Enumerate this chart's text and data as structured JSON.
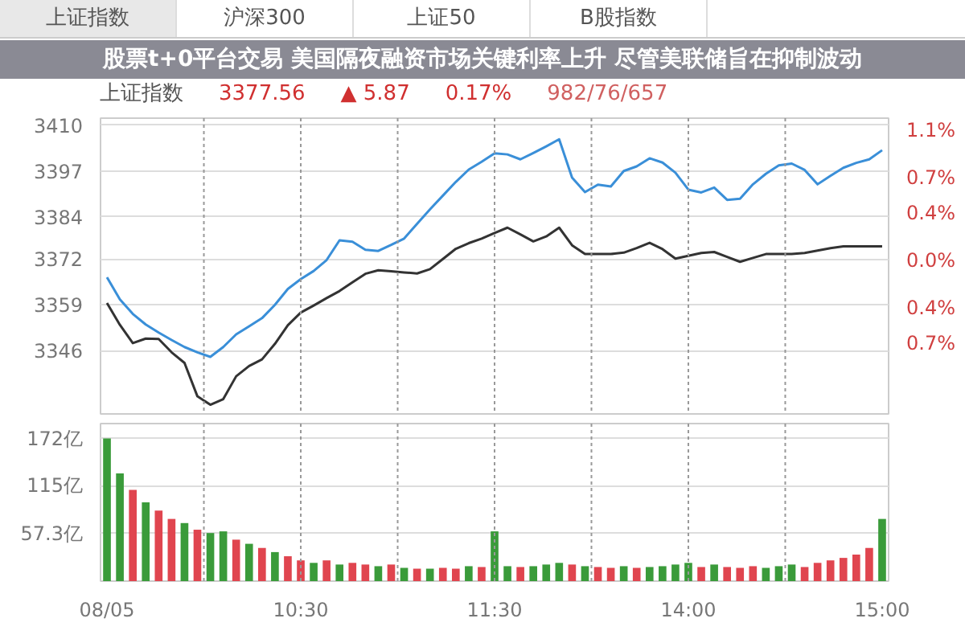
{
  "chart_data": [
    {
      "type": "line",
      "title": "上证指数",
      "annotations": [
        "股票t+0平台交易 美国隔夜融资市场关键利率上升 尽管美联储旨在抑制波动",
        "上证指数",
        "沪深300",
        "上证50",
        "B股指数",
        "3377.56",
        "▲ 5.87",
        "0.17%",
        "982/76/657"
      ],
      "categories": [
        null,
        null,
        null,
        null,
        null,
        null,
        null,
        null,
        null,
        null,
        null,
        null,
        null,
        null,
        null,
        null,
        null,
        null,
        null,
        null,
        null,
        null,
        null,
        null,
        null,
        null,
        null,
        null,
        null,
        null,
        null,
        null,
        null,
        null,
        null,
        null,
        null,
        null,
        null,
        null,
        null,
        null,
        null,
        null,
        null,
        null,
        null,
        null,
        null,
        null,
        null,
        null,
        null,
        null,
        null,
        null,
        null,
        null,
        null,
        null,
        null
      ],
      "series": [
        {
          "color": "#3a8fd8",
          "values": [
            3366.8,
            3360.5,
            3356.4,
            3353.4,
            3351.1,
            3349.0,
            3347.0,
            3345.5,
            3344.2,
            3347.0,
            3350.6,
            3352.9,
            3355.2,
            3359.0,
            3363.5,
            3366.3,
            3368.6,
            3371.7,
            3377.3,
            3376.9,
            3374.6,
            3374.3,
            3376.0,
            3377.8,
            3382.0,
            3386.1,
            3390.0,
            3393.9,
            3397.4,
            3399.6,
            3402.0,
            3401.7,
            3400.3,
            3402.1,
            3404.0,
            3406.0,
            3395.1,
            3391.0,
            3393.1,
            3392.6,
            3397.0,
            3398.3,
            3400.6,
            3399.4,
            3396.5,
            3391.7,
            3390.9,
            3392.3,
            3388.8,
            3389.1,
            3393.2,
            3396.2,
            3398.6,
            3399.1,
            3397.3,
            3393.2,
            3395.6,
            3397.9,
            3399.3,
            3400.3,
            3402.9
          ]
        },
        {
          "color": "#333333",
          "values": [
            3359.5,
            3353.3,
            3348.1,
            3349.4,
            3349.3,
            3345.5,
            3342.5,
            3333.0,
            3330.6,
            3332.2,
            3338.7,
            3341.6,
            3343.5,
            3347.9,
            3353.2,
            3356.8,
            3358.8,
            3360.9,
            3362.9,
            3365.4,
            3367.8,
            3368.8,
            3368.5,
            3368.2,
            3367.9,
            3369.1,
            3372.0,
            3374.9,
            3376.5,
            3377.8,
            3379.4,
            3380.9,
            3379.0,
            3377.0,
            3378.4,
            3380.9,
            3375.9,
            3373.4,
            3373.4,
            3373.4,
            3373.8,
            3375.1,
            3376.6,
            3374.8,
            3372.1,
            3372.9,
            3373.7,
            3374.0,
            3372.6,
            3371.2,
            3372.3,
            3373.4,
            3373.4,
            3373.4,
            3373.7,
            3374.4,
            3375.1,
            3375.6,
            3375.6,
            3375.6,
            3375.6
          ]
        }
      ],
      "ylim": [
        3328,
        3412
      ],
      "yticks": [
        3346,
        3359,
        3372,
        3384,
        3397,
        3410
      ],
      "y2lim": [
        -1.3,
        1.2
      ],
      "y2ticks": [
        {
          "value": -0.7,
          "label": "0.7%"
        },
        {
          "value": -0.4,
          "label": "0.4%"
        },
        {
          "value": 0,
          "label": "0.0%"
        },
        {
          "value": 0.4,
          "label": "0.4%"
        },
        {
          "value": 0.7,
          "label": "0.7%"
        },
        {
          "value": 1.1,
          "label": "1.1%"
        }
      ],
      "grid": true
    },
    {
      "type": "bar",
      "categories": [
        "08/05",
        null,
        null,
        null,
        null,
        null,
        null,
        null,
        null,
        null,
        null,
        null,
        null,
        null,
        null,
        "10:30",
        null,
        null,
        null,
        null,
        null,
        null,
        null,
        null,
        null,
        null,
        null,
        null,
        null,
        null,
        "11:30",
        null,
        null,
        null,
        null,
        null,
        null,
        null,
        null,
        null,
        null,
        null,
        null,
        null,
        null,
        "14:00",
        null,
        null,
        null,
        null,
        null,
        null,
        null,
        null,
        null,
        null,
        null,
        null,
        null,
        null,
        "15:00"
      ],
      "values": [
        172,
        130,
        110,
        95,
        85,
        75,
        70,
        62,
        58,
        60,
        50,
        45,
        40,
        35,
        30,
        25,
        22,
        25,
        20,
        22,
        20,
        18,
        20,
        16,
        15,
        15,
        16,
        15,
        18,
        17,
        60,
        18,
        17,
        18,
        20,
        22,
        20,
        18,
        17,
        16,
        18,
        16,
        17,
        18,
        20,
        22,
        17,
        20,
        17,
        16,
        18,
        16,
        18,
        20,
        17,
        22,
        25,
        28,
        32,
        40,
        75
      ],
      "colors": [
        "#3a9b3a",
        "#3a9b3a",
        "#e0454f",
        "#3a9b3a",
        "#e0454f",
        "#e0454f",
        "#3a9b3a",
        "#e0454f",
        "#3a9b3a",
        "#3a9b3a",
        "#e0454f",
        "#3a9b3a",
        "#e0454f",
        "#3a9b3a",
        "#e0454f",
        "#e0454f",
        "#3a9b3a",
        "#e0454f",
        "#3a9b3a",
        "#e0454f",
        "#e0454f",
        "#3a9b3a",
        "#e0454f",
        "#3a9b3a",
        "#e0454f",
        "#3a9b3a",
        "#e0454f",
        "#e0454f",
        "#3a9b3a",
        "#e0454f",
        "#3a9b3a",
        "#3a9b3a",
        "#e0454f",
        "#3a9b3a",
        "#3a9b3a",
        "#3a9b3a",
        "#e0454f",
        "#3a9b3a",
        "#e0454f",
        "#e0454f",
        "#3a9b3a",
        "#e0454f",
        "#3a9b3a",
        "#3a9b3a",
        "#3a9b3a",
        "#3a9b3a",
        "#e0454f",
        "#3a9b3a",
        "#e0454f",
        "#e0454f",
        "#e0454f",
        "#3a9b3a",
        "#3a9b3a",
        "#3a9b3a",
        "#e0454f",
        "#e0454f",
        "#e0454f",
        "#e0454f",
        "#e0454f",
        "#e0454f",
        "#3a9b3a"
      ],
      "ylim": [
        0,
        190
      ],
      "yticks": [
        {
          "value": 57.3,
          "label": "57.3亿"
        },
        {
          "value": 115,
          "label": "115亿"
        },
        {
          "value": 172,
          "label": "172亿"
        }
      ],
      "grid": true
    }
  ]
}
